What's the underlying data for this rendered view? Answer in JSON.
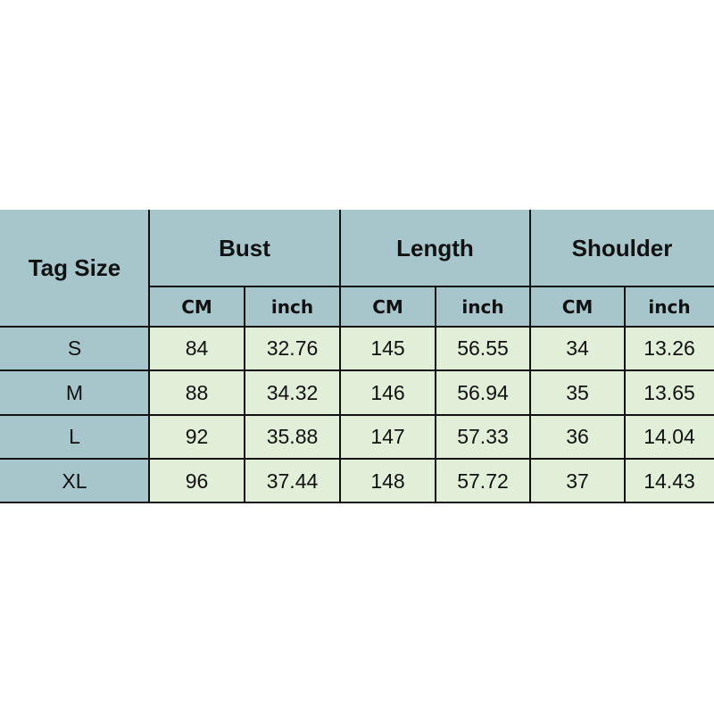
{
  "header": {
    "tag_size": "Tag Size",
    "groups": [
      "Bust",
      "Length",
      "Shoulder"
    ],
    "units": [
      "CM",
      "inch",
      "CM",
      "inch",
      "CM",
      "inch"
    ]
  },
  "rows": [
    {
      "size": "S",
      "values": [
        "84",
        "32.76",
        "145",
        "56.55",
        "34",
        "13.26"
      ]
    },
    {
      "size": "M",
      "values": [
        "88",
        "34.32",
        "146",
        "56.94",
        "35",
        "13.65"
      ]
    },
    {
      "size": "L",
      "values": [
        "92",
        "35.88",
        "147",
        "57.33",
        "36",
        "14.04"
      ]
    },
    {
      "size": "XL",
      "values": [
        "96",
        "37.44",
        "148",
        "57.72",
        "37",
        "14.43"
      ]
    }
  ],
  "colors": {
    "header": "#a6c6cc",
    "data": "#e1eed8",
    "border": "#111111"
  }
}
